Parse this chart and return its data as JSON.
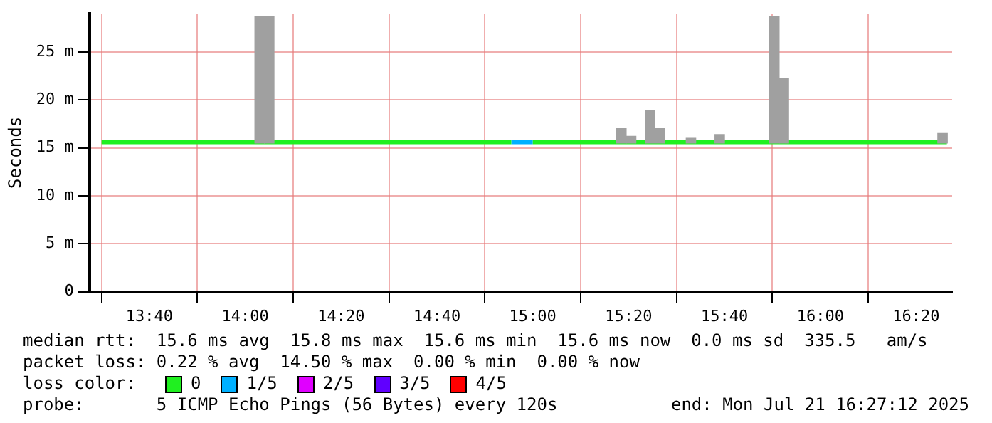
{
  "chart_data": {
    "type": "line",
    "ylabel": "Seconds",
    "legend_title": "loss color:",
    "legend": "bottom",
    "grid": true,
    "xlim": [
      13.4583,
      16.4583
    ],
    "xticks": [
      {
        "value": 13.6667,
        "label": "13:40"
      },
      {
        "value": 14,
        "label": "14:00"
      },
      {
        "value": 14.3333,
        "label": "14:20"
      },
      {
        "value": 14.6667,
        "label": "14:40"
      },
      {
        "value": 15,
        "label": "15:00"
      },
      {
        "value": 15.3333,
        "label": "15:20"
      },
      {
        "value": 15.6667,
        "label": "15:40"
      },
      {
        "value": 16,
        "label": "16:00"
      },
      {
        "value": 16.3333,
        "label": "16:20"
      }
    ],
    "ylim": [
      0,
      29
    ],
    "yticks": [
      0,
      {
        "value": 5,
        "label": "5 m"
      },
      {
        "value": 10,
        "label": "10 m"
      },
      {
        "value": 15,
        "label": "15 m"
      },
      {
        "value": 20,
        "label": "20 m"
      },
      {
        "value": 25,
        "label": "25 m"
      }
    ],
    "series": [
      {
        "type": "bar",
        "color": "#a0a0a0",
        "x": [
          14.05,
          14.0833,
          15.308,
          15.342,
          15.408,
          15.442,
          15.55,
          15.65,
          15.84,
          15.873,
          16.425
        ],
        "base": [
          15.5,
          15.5,
          15.5,
          15.5,
          15.5,
          15.5,
          15.5,
          15.5,
          15.5,
          15.5,
          15.5
        ],
        "values": [
          13.2,
          13.2,
          1.5,
          0.7,
          3.4,
          1.5,
          0.5,
          0.9,
          13.2,
          6.7,
          1.0
        ]
      },
      {
        "name": "0",
        "color": "#20f020",
        "x": [
          13.5,
          14.925,
          14.93,
          15.0,
          16.44
        ],
        "values": [
          15.6,
          15.6,
          null,
          15.6,
          15.6
        ]
      },
      {
        "name": "1/5",
        "color": "#00b0ff",
        "x": [
          14.925,
          15.0
        ],
        "values": [
          15.6,
          15.6
        ]
      },
      {
        "name": "2/5",
        "color": "#e000ff"
      },
      {
        "name": "3/5",
        "color": "#6000ff"
      },
      {
        "name": "4/5",
        "color": "#ff0000"
      }
    ],
    "annotations": [
      "median rtt:  15.6 ms avg  15.8 ms max  15.6 ms min  15.6 ms now  0.0 ms sd  335.5   am/s",
      "packet loss: 0.22 % avg  14.50 % max  0.00 % min  0.00 % now",
      "probe:       5 ICMP Echo Pings (56 Bytes) every 120s",
      "end: Mon Jul 21 16:27:12 2025"
    ]
  }
}
